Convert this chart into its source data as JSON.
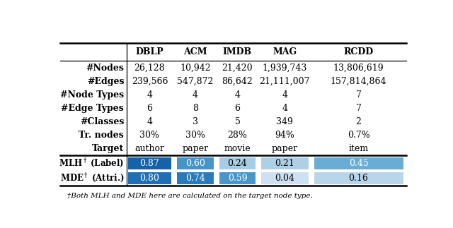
{
  "columns": [
    "",
    "DBLP",
    "ACM",
    "IMDB",
    "MAG",
    "RCDD"
  ],
  "rows": [
    [
      "#Nodes",
      "26,128",
      "10,942",
      "21,420",
      "1,939,743",
      "13,806,619"
    ],
    [
      "#Edges",
      "239,566",
      "547,872",
      "86,642",
      "21,111,007",
      "157,814,864"
    ],
    [
      "#Node Types",
      "4",
      "4",
      "4",
      "4",
      "7"
    ],
    [
      "#Edge Types",
      "6",
      "8",
      "6",
      "4",
      "7"
    ],
    [
      "#Classes",
      "4",
      "3",
      "5",
      "349",
      "2"
    ],
    [
      "Tr. nodes",
      "30%",
      "30%",
      "28%",
      "94%",
      "0.7%"
    ],
    [
      "Target",
      "author",
      "paper",
      "movie",
      "paper",
      "item"
    ]
  ],
  "mlh_values": [
    0.87,
    0.6,
    0.24,
    0.21,
    0.45
  ],
  "mde_values": [
    0.8,
    0.74,
    0.59,
    0.04,
    0.16
  ],
  "footnote": "†Both MLH and MDE here are calculated on the target node type.",
  "bg_color": "#ffffff"
}
